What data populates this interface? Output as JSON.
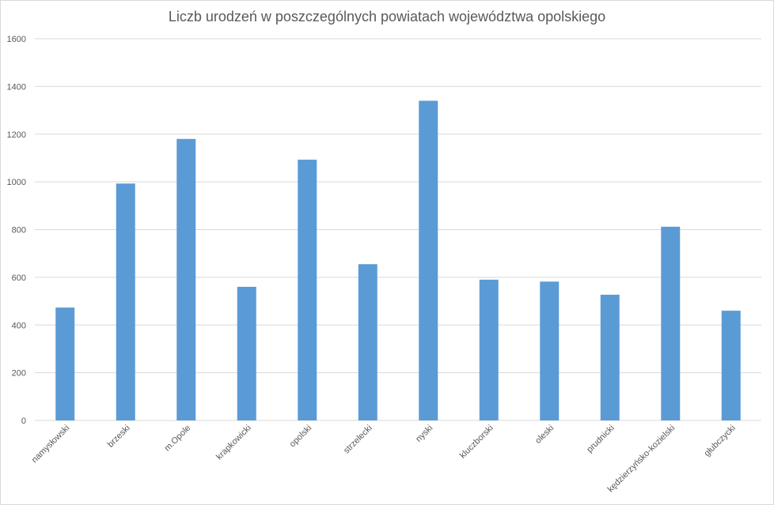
{
  "chart_data": {
    "type": "bar",
    "title": "Liczb urodzeń w poszczególnych powiatach województwa opolskiego",
    "xlabel": "",
    "ylabel": "",
    "categories": [
      "namysłowski",
      "brzeski",
      "m.Opole",
      "krapkowicki",
      "opolski",
      "strzelecki",
      "nyski",
      "kluczborski",
      "oleski",
      "prudnicki",
      "kędzierzyńsko-kozielski",
      "głubczycki"
    ],
    "values": [
      473,
      993,
      1180,
      560,
      1093,
      655,
      1340,
      590,
      582,
      527,
      812,
      460
    ],
    "ylim": [
      0,
      1600
    ],
    "yticks": [
      0,
      200,
      400,
      600,
      800,
      1000,
      1200,
      1400,
      1600
    ],
    "grid": true,
    "legend": "none",
    "colors": {
      "bar": "#5b9bd5",
      "grid": "#d9d9d9",
      "text": "#595959"
    }
  }
}
